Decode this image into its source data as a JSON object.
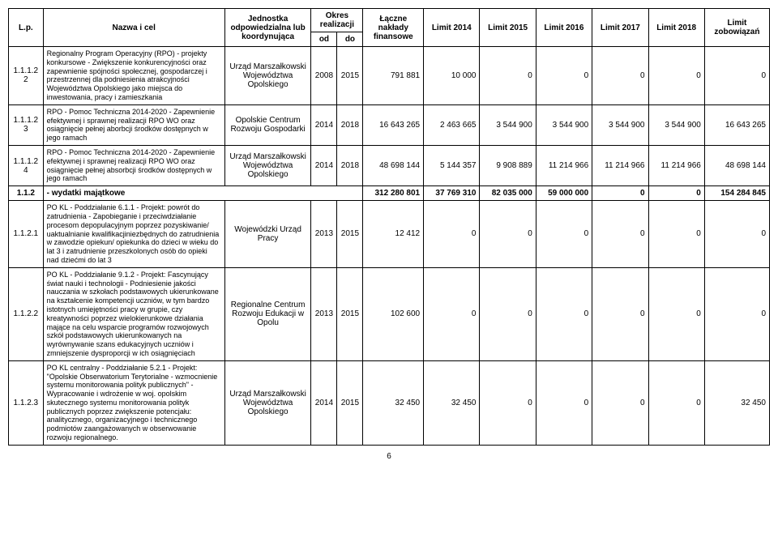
{
  "header": {
    "lp": "L.p.",
    "name": "Nazwa i cel",
    "unit": "Jednostka odpowiedzialna lub koordynująca",
    "period": "Okres realizacji",
    "od": "od",
    "do": "do",
    "fin": "Łączne nakłady finansowe",
    "l2014": "Limit 2014",
    "l2015": "Limit 2015",
    "l2016": "Limit 2016",
    "l2017": "Limit 2017",
    "l2018": "Limit 2018",
    "lz": "Limit zobowiązań"
  },
  "rows": [
    {
      "lp": "1.1.1.22",
      "name": "Regionalny Program Operacyjny (RPO) - projekty konkursowe - Zwiększenie konkurencyjności oraz zapewnienie spójności społecznej, gospodarczej i przestrzennej dla podniesienia atrakcyjności Województwa Opolskiego jako miejsca do inwestowania, pracy i zamieszkania",
      "unit": "Urząd Marszałkowski Województwa Opolskiego",
      "od": "2008",
      "do": "2015",
      "fin": "791 881",
      "l2014": "10 000",
      "l2015": "0",
      "l2016": "0",
      "l2017": "0",
      "l2018": "0",
      "lz": "0"
    },
    {
      "lp": "1.1.1.23",
      "name": "RPO - Pomoc Techniczna 2014-2020 - Zapewnienie efektywnej i sprawnej realizacji RPO WO oraz osiągnięcie pełnej aborbcji środków dostępnych w jego ramach",
      "unit": "Opolskie Centrum Rozwoju Gospodarki",
      "od": "2014",
      "do": "2018",
      "fin": "16 643 265",
      "l2014": "2 463 665",
      "l2015": "3 544 900",
      "l2016": "3 544 900",
      "l2017": "3 544 900",
      "l2018": "3 544 900",
      "lz": "16 643 265"
    },
    {
      "lp": "1.1.1.24",
      "name": "RPO - Pomoc Techniczna 2014-2020 - Zapewnienie efektywnej i sprawnej realizacji RPO WO oraz osiągnięcie pełnej absorbcji środków dostępnych w jego ramach",
      "unit": "Urząd Marszałkowski Województwa Opolskiego",
      "od": "2014",
      "do": "2018",
      "fin": "48 698 144",
      "l2014": "5 144 357",
      "l2015": "9 908 889",
      "l2016": "11 214 966",
      "l2017": "11 214 966",
      "l2018": "11 214 966",
      "lz": "48 698 144"
    },
    {
      "section": true,
      "lp": "1.1.2",
      "name": "- wydatki majątkowe",
      "fin": "312 280 801",
      "l2014": "37 769 310",
      "l2015": "82 035 000",
      "l2016": "59 000 000",
      "l2017": "0",
      "l2018": "0",
      "lz": "154 284 845"
    },
    {
      "lp": "1.1.2.1",
      "name": "PO KL - Poddziałanie 6.1.1 - Projekt: powrót do zatrudnienia - Zapobieganie i przeciwdziałanie procesom depopulacyjnym poprzez pozyskiwanie/ uaktualnianie kwalifikacjiniezbędnych do zatrudnienia w zawodzie opiekun/ opiekunka do dzieci w wieku do lat 3 i zatrudnienie przeszkolonych osób do opieki nad dziećmi do lat 3",
      "unit": "Wojewódzki Urząd Pracy",
      "od": "2013",
      "do": "2015",
      "fin": "12 412",
      "l2014": "0",
      "l2015": "0",
      "l2016": "0",
      "l2017": "0",
      "l2018": "0",
      "lz": "0"
    },
    {
      "lp": "1.1.2.2",
      "name": "PO KL - Poddziałanie 9.1.2 - Projekt: Fascynujący świat nauki i technologii - Podniesienie jakości nauczania w szkołach podstawowych ukierunkowane na kształcenie kompetencji uczniów, w tym bardzo istotnych umiejętności pracy w grupie, czy kreatywności poprzez wielokierunkowe działania mające na celu wsparcie programów rozwojowych szkół podstawowych ukierunkowanych na wyrównywanie szans edukacyjnych uczniów i zmniejszenie dysproporcji w ich osiągnięciach",
      "unit": "Regionalne Centrum Rozwoju Edukacji w Opolu",
      "od": "2013",
      "do": "2015",
      "fin": "102 600",
      "l2014": "0",
      "l2015": "0",
      "l2016": "0",
      "l2017": "0",
      "l2018": "0",
      "lz": "0"
    },
    {
      "lp": "1.1.2.3",
      "name": "PO KL centralny - Poddziałanie 5.2.1 - Projekt: \"Opolskie Obserwatorium Terytorialne - wzmocnienie systemu monitorowania polityk publicznych\"       - Wypracowanie i wdrożenie w woj. opolskim skutecznego systemu monitorowania polityk publicznych poprzez zwiększenie potencjału: analitycznego, organizacyjnego i technicznego podmiotów zaangażowanych w obserwowanie rozwoju regionalnego.",
      "unit": "Urząd Marszałkowski Województwa Opolskiego",
      "od": "2014",
      "do": "2015",
      "fin": "32 450",
      "l2014": "32 450",
      "l2015": "0",
      "l2016": "0",
      "l2017": "0",
      "l2018": "0",
      "lz": "32 450"
    }
  ],
  "pageNumber": "6"
}
